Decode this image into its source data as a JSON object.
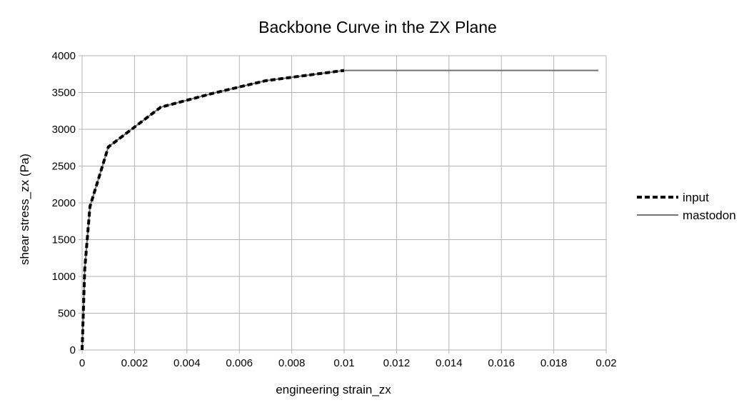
{
  "chart_data": {
    "type": "line",
    "title": "Backbone Curve in the ZX Plane",
    "xlabel": "engineering strain_zx",
    "ylabel": "shear stress_zx (Pa)",
    "xlim": [
      0,
      0.02
    ],
    "ylim": [
      0,
      4000
    ],
    "x_ticks": [
      0,
      0.002,
      0.004,
      0.006,
      0.008,
      0.01,
      0.012,
      0.014,
      0.016,
      0.018,
      0.02
    ],
    "x_tick_labels": [
      "0",
      "0.002",
      "0.004",
      "0.006",
      "0.008",
      "0.01",
      "0.012",
      "0.014",
      "0.016",
      "0.018",
      "0.02"
    ],
    "y_ticks": [
      0,
      500,
      1000,
      1500,
      2000,
      2500,
      3000,
      3500,
      4000
    ],
    "y_tick_labels": [
      "0",
      "500",
      "1000",
      "1500",
      "2000",
      "2500",
      "3000",
      "3500",
      "4000"
    ],
    "grid": true,
    "legend_position": "right",
    "series": [
      {
        "name": "input",
        "style": "dashed",
        "color": "#000000",
        "x": [
          0,
          0.0001,
          0.0003,
          0.001,
          0.003,
          0.005,
          0.007,
          0.01
        ],
        "y": [
          0,
          1100,
          1950,
          2760,
          3300,
          3490,
          3660,
          3800
        ]
      },
      {
        "name": "mastodon",
        "style": "solid",
        "color": "#737373",
        "x": [
          0,
          0.0001,
          0.0003,
          0.001,
          0.003,
          0.005,
          0.007,
          0.01,
          0.0197
        ],
        "y": [
          0,
          1100,
          1950,
          2760,
          3300,
          3490,
          3660,
          3800,
          3800
        ]
      }
    ]
  }
}
